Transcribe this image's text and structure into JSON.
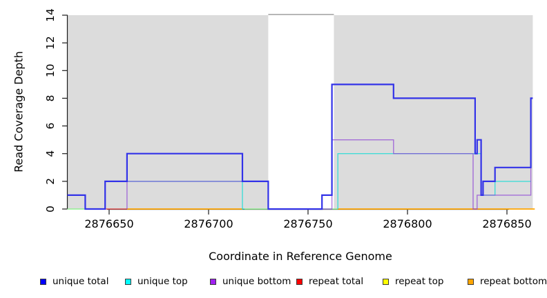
{
  "figure": {
    "x_axis_title": "Coordinate in Reference Genome",
    "y_axis_title": "Read Coverage Depth"
  },
  "colors": {
    "plot_background": "#FFFFFF",
    "repeat_region_fill": "#DCDCDC",
    "gap_top_line": "#A6A6A6",
    "axis_line": "#1a1a1a",
    "tick_text": "#000000"
  },
  "chart_data": {
    "type": "line",
    "subtype": "step-coverage-plot",
    "title": "",
    "xlabel": "Coordinate in Reference Genome",
    "ylabel": "Read Coverage Depth",
    "xlim": [
      2876629,
      2876864
    ],
    "ylim": [
      0,
      14
    ],
    "grid": false,
    "x_ticks": [
      2876650,
      2876700,
      2876750,
      2876800,
      2876850
    ],
    "x_tick_labels": [
      "2876650",
      "2876700",
      "2876750",
      "2876800",
      "2876850"
    ],
    "y_ticks": [
      0,
      2,
      4,
      6,
      8,
      10,
      12,
      14
    ],
    "y_tick_labels": [
      "0",
      "2",
      "4",
      "6",
      "8",
      "10",
      "12",
      "14"
    ],
    "background_repeat_regions": [
      {
        "start": 2876629,
        "end": 2876730
      },
      {
        "start": 2876763,
        "end": 2876863
      }
    ],
    "gap_top_segment": {
      "start": 2876730,
      "end": 2876763,
      "depth": 14
    },
    "legend_position": "bottom",
    "overlap_note": "pale-green depth-0 runs are unique-top + repeat-top overlap",
    "draw_order": [
      4,
      3,
      5,
      1,
      2,
      0
    ],
    "series": [
      {
        "name": "unique total",
        "legend_color": "#0000FF",
        "plot_color": "#3232E8",
        "line_width": 2.2,
        "opacity": 1,
        "runs": [
          [
            [
              2876629,
              1
            ],
            [
              2876638,
              1
            ],
            [
              2876638,
              0
            ],
            [
              2876648,
              0
            ],
            [
              2876648,
              2
            ],
            [
              2876659,
              2
            ],
            [
              2876659,
              4
            ],
            [
              2876717,
              4
            ],
            [
              2876717,
              2
            ],
            [
              2876730,
              2
            ],
            [
              2876730,
              0
            ],
            [
              2876757,
              0
            ],
            [
              2876757,
              1
            ],
            [
              2876762,
              1
            ],
            [
              2876762,
              9
            ],
            [
              2876793,
              9
            ],
            [
              2876793,
              8
            ],
            [
              2876834,
              8
            ],
            [
              2876834,
              4
            ],
            [
              2876835,
              4
            ],
            [
              2876835,
              5
            ],
            [
              2876837,
              5
            ],
            [
              2876837,
              1
            ],
            [
              2876838,
              1
            ],
            [
              2876838,
              2
            ],
            [
              2876844,
              2
            ],
            [
              2876844,
              3
            ],
            [
              2876862,
              3
            ],
            [
              2876862,
              8
            ],
            [
              2876863,
              8
            ]
          ]
        ]
      },
      {
        "name": "unique top",
        "legend_color": "#00FFFF",
        "plot_color": "#30DCD6",
        "line_width": 1.4,
        "opacity": 0.9,
        "runs": [
          [
            [
              2876648,
              0
            ],
            [
              2876648,
              2
            ],
            [
              2876717,
              2
            ],
            [
              2876717,
              0
            ],
            [
              2876718,
              0
            ]
          ],
          [
            [
              2876765,
              0
            ],
            [
              2876765,
              4
            ],
            [
              2876837,
              4
            ],
            [
              2876837,
              1
            ],
            [
              2876844,
              1
            ],
            [
              2876844,
              2
            ],
            [
              2876862,
              2
            ]
          ]
        ]
      },
      {
        "name": "unique bottom",
        "legend_color": "#A020F0",
        "plot_color": "#8B3FD6",
        "line_width": 1.4,
        "opacity": 0.7,
        "runs": [
          [
            [
              2876659,
              0
            ],
            [
              2876659,
              2
            ],
            [
              2876730,
              2
            ],
            [
              2876730,
              0
            ],
            [
              2876762,
              0
            ],
            [
              2876762,
              5
            ],
            [
              2876793,
              5
            ],
            [
              2876793,
              4
            ],
            [
              2876833,
              4
            ],
            [
              2876833,
              0
            ],
            [
              2876835,
              0
            ],
            [
              2876835,
              1
            ],
            [
              2876862,
              1
            ],
            [
              2876862,
              3
            ]
          ]
        ]
      },
      {
        "name": "repeat total",
        "legend_color": "#FF0000",
        "plot_color": "#DE4A4A",
        "line_width": 1.4,
        "opacity": 0.95,
        "runs": [
          [
            [
              2876648,
              0
            ],
            [
              2876659,
              0
            ]
          ]
        ]
      },
      {
        "name": "repeat top",
        "legend_color": "#FFFF00",
        "plot_color": "#90EE90",
        "line_width": 1.5,
        "opacity": 1,
        "runs": [
          [
            [
              2876629,
              0
            ],
            [
              2876638,
              0
            ]
          ],
          [
            [
              2876718,
              0
            ],
            [
              2876730,
              0
            ]
          ],
          [
            [
              2876757,
              0
            ],
            [
              2876765,
              0
            ]
          ]
        ]
      },
      {
        "name": "repeat bottom",
        "legend_color": "#FFA500",
        "plot_color": "#FFA500",
        "line_width": 1.7,
        "opacity": 1,
        "runs": [
          [
            [
              2876659,
              0
            ],
            [
              2876717,
              0
            ]
          ],
          [
            [
              2876765,
              0
            ],
            [
              2876864,
              0
            ]
          ]
        ]
      }
    ]
  }
}
